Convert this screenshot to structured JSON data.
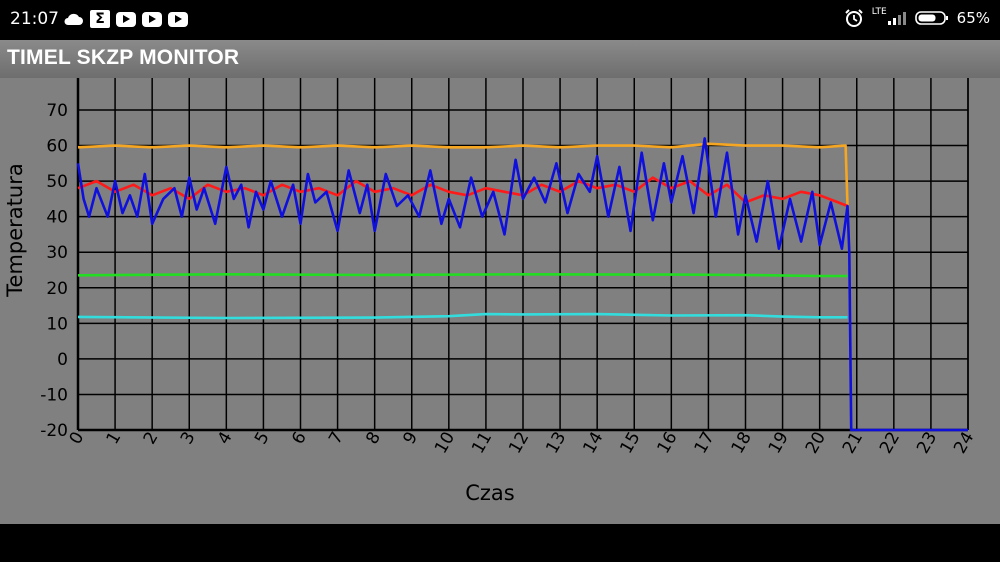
{
  "status_bar": {
    "time": "21:07",
    "left_icons": [
      "cloud-icon",
      "sigma-app-icon",
      "youtube-icon",
      "youtube-icon",
      "youtube-icon"
    ],
    "network": "LTE",
    "battery": "65%"
  },
  "app_bar": {
    "title": "TIMEL SKZP MONITOR"
  },
  "chart_data": {
    "type": "line",
    "xlabel": "Czas",
    "ylabel": "Temperatura",
    "xlim": [
      0,
      24
    ],
    "ylim": [
      -20,
      80
    ],
    "x_ticks": [
      "0",
      "1",
      "2",
      "3",
      "4",
      "5",
      "6",
      "7",
      "8",
      "9",
      "10",
      "11",
      "12",
      "13",
      "14",
      "15",
      "16",
      "17",
      "18",
      "19",
      "20",
      "21",
      "22",
      "23",
      "24"
    ],
    "y_ticks": [
      "-20",
      "-10",
      "0",
      "10",
      "20",
      "30",
      "40",
      "50",
      "60",
      "70"
    ],
    "grid": true,
    "series": [
      {
        "color": "#f5a623",
        "x": [
          0,
          1,
          2,
          3,
          4,
          5,
          6,
          7,
          8,
          9,
          10,
          11,
          12,
          13,
          14,
          15,
          16,
          17,
          18,
          19,
          20,
          20.7,
          20.75
        ],
        "y": [
          59.5,
          60,
          59.5,
          60,
          59.5,
          60,
          59.5,
          60,
          59.5,
          60,
          59.5,
          59.5,
          60,
          59.5,
          60,
          60,
          59.5,
          60.5,
          60,
          60,
          59.5,
          60,
          43
        ]
      },
      {
        "color": "#ff1a1a",
        "x": [
          0,
          0.5,
          1,
          1.5,
          2,
          2.5,
          3,
          3.5,
          4,
          4.5,
          5,
          5.5,
          6,
          6.5,
          7,
          7.5,
          8,
          8.5,
          9,
          9.5,
          10,
          10.5,
          11,
          11.5,
          12,
          12.5,
          13,
          13.5,
          14,
          14.5,
          15,
          15.5,
          16,
          16.5,
          17,
          17.5,
          18,
          18.5,
          19,
          19.5,
          20,
          20.5,
          20.75
        ],
        "y": [
          48,
          50,
          47,
          49,
          46,
          48,
          45,
          49,
          47,
          48,
          46,
          49,
          47,
          48,
          46,
          50,
          47,
          48,
          46,
          49,
          47,
          46,
          48,
          47,
          46,
          49,
          47,
          50,
          48,
          49,
          47,
          51,
          48,
          50,
          46,
          49,
          44,
          46,
          45,
          47,
          46,
          44,
          43
        ]
      },
      {
        "color": "#1010dd",
        "x": [
          0,
          0.15,
          0.3,
          0.5,
          0.8,
          1,
          1.2,
          1.4,
          1.6,
          1.8,
          2,
          2.3,
          2.6,
          2.8,
          3,
          3.2,
          3.4,
          3.7,
          4,
          4.2,
          4.4,
          4.6,
          4.8,
          5,
          5.2,
          5.5,
          5.8,
          6,
          6.2,
          6.4,
          6.7,
          7,
          7.3,
          7.6,
          7.8,
          8,
          8.3,
          8.6,
          8.9,
          9.2,
          9.5,
          9.8,
          10,
          10.3,
          10.6,
          10.9,
          11.2,
          11.5,
          11.8,
          12,
          12.3,
          12.6,
          12.9,
          13.2,
          13.5,
          13.8,
          14,
          14.3,
          14.6,
          14.9,
          15.2,
          15.5,
          15.8,
          16,
          16.3,
          16.6,
          16.9,
          17.2,
          17.5,
          17.8,
          18,
          18.3,
          18.6,
          18.9,
          19.2,
          19.5,
          19.8,
          20,
          20.3,
          20.6,
          20.75,
          20.8,
          20.85,
          24
        ],
        "y": [
          55,
          45,
          40,
          48,
          40,
          50,
          41,
          46,
          40,
          52,
          38,
          45,
          48,
          40,
          51,
          42,
          48,
          38,
          54,
          45,
          49,
          37,
          47,
          42,
          50,
          40,
          49,
          38,
          52,
          44,
          47,
          36,
          53,
          41,
          49,
          36,
          52,
          43,
          46,
          40,
          53,
          38,
          45,
          37,
          51,
          40,
          47,
          35,
          56,
          45,
          51,
          44,
          55,
          41,
          52,
          47,
          57,
          40,
          54,
          36,
          58,
          39,
          55,
          44,
          57,
          41,
          62,
          40,
          58,
          35,
          46,
          33,
          50,
          31,
          45,
          33,
          47,
          32,
          44,
          31,
          43,
          30,
          -20,
          -20
        ]
      },
      {
        "color": "#22dd22",
        "x": [
          0,
          4,
          8,
          12,
          16,
          18,
          20,
          20.75
        ],
        "y": [
          23.5,
          23.8,
          23.6,
          23.8,
          23.7,
          23.6,
          23.3,
          23.3
        ]
      },
      {
        "color": "#33dddd",
        "x": [
          0,
          4,
          8,
          10,
          11,
          12,
          14,
          16,
          18,
          19,
          20,
          20.75
        ],
        "y": [
          11.8,
          11.5,
          11.6,
          12,
          12.6,
          12.5,
          12.6,
          12.2,
          12.3,
          11.9,
          11.7,
          11.7
        ]
      }
    ]
  }
}
